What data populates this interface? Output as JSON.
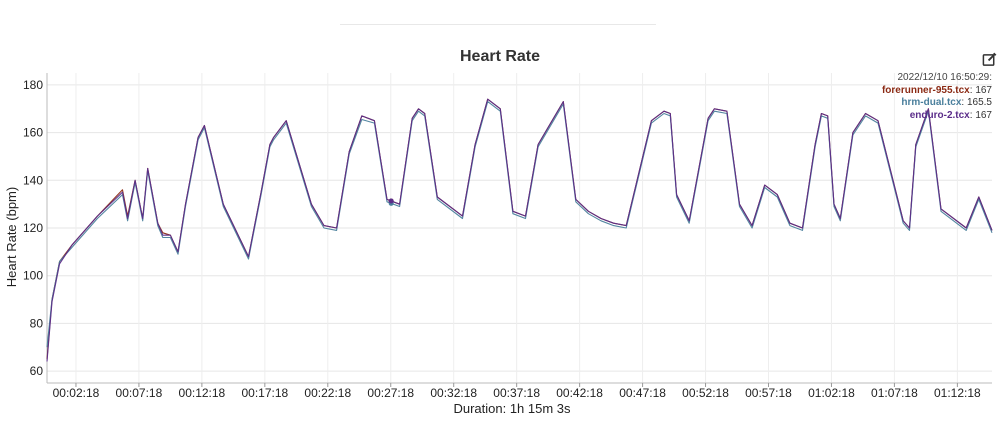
{
  "chart_data": {
    "type": "line",
    "title": "Heart Rate",
    "ylabel": "Heart Rate (bpm)",
    "xlabel": "Duration: 1h 15m 3s",
    "ylim": [
      55,
      185
    ],
    "xlim": [
      0,
      4503
    ],
    "yticks": [
      60,
      80,
      100,
      120,
      140,
      160,
      180
    ],
    "xticks": [
      {
        "t": 138,
        "label": "00:02:18"
      },
      {
        "t": 438,
        "label": "00:07:18"
      },
      {
        "t": 738,
        "label": "00:12:18"
      },
      {
        "t": 1038,
        "label": "00:17:18"
      },
      {
        "t": 1338,
        "label": "00:22:18"
      },
      {
        "t": 1638,
        "label": "00:27:18"
      },
      {
        "t": 1938,
        "label": "00:32:18"
      },
      {
        "t": 2238,
        "label": "00:37:18"
      },
      {
        "t": 2538,
        "label": "00:42:18"
      },
      {
        "t": 2838,
        "label": "00:47:18"
      },
      {
        "t": 3138,
        "label": "00:52:18"
      },
      {
        "t": 3438,
        "label": "00:57:18"
      },
      {
        "t": 3738,
        "label": "01:02:18"
      },
      {
        "t": 4038,
        "label": "01:07:18"
      },
      {
        "t": 4338,
        "label": "01:12:18"
      }
    ],
    "grid": true,
    "legend_position": "top-right",
    "tooltip": {
      "time": "2022/12/10 16:50:29:",
      "t": 1640
    },
    "x": [
      0,
      24,
      60,
      120,
      240,
      360,
      384,
      420,
      456,
      480,
      528,
      552,
      588,
      624,
      660,
      720,
      750,
      840,
      960,
      1020,
      1062,
      1080,
      1140,
      1260,
      1320,
      1380,
      1440,
      1500,
      1560,
      1620,
      1680,
      1740,
      1770,
      1800,
      1860,
      1980,
      2040,
      2100,
      2160,
      2220,
      2280,
      2340,
      2460,
      2520,
      2580,
      2640,
      2700,
      2760,
      2880,
      2940,
      2970,
      3000,
      3060,
      3150,
      3180,
      3240,
      3300,
      3360,
      3420,
      3480,
      3540,
      3600,
      3660,
      3690,
      3720,
      3750,
      3780,
      3840,
      3900,
      3960,
      4080,
      4110,
      4140,
      4200,
      4260,
      4380,
      4440,
      4503
    ],
    "series": [
      {
        "name": "forerunner-955.tcx",
        "readout": "167",
        "color": "#8b2a14",
        "values": [
          65,
          90,
          106,
          113,
          125,
          136,
          125,
          140,
          124,
          145,
          122,
          118,
          117,
          110,
          130,
          158,
          163,
          130,
          108,
          135,
          155,
          158,
          165,
          130,
          121,
          120,
          152,
          167,
          165,
          132,
          130,
          166,
          170,
          168,
          133,
          125,
          155,
          174,
          170,
          127,
          125,
          155,
          173,
          132,
          127,
          124,
          122,
          121,
          165,
          169,
          168,
          134,
          123,
          166,
          170,
          169,
          130,
          121,
          138,
          134,
          122,
          120,
          155,
          168,
          167,
          130,
          124,
          160,
          168,
          165,
          123,
          120,
          155,
          170,
          128,
          120,
          133,
          119
        ]
      },
      {
        "name": "hrm-dual.tcx",
        "readout": "165.5",
        "color": "#4a7f9c",
        "values": [
          70,
          90,
          106,
          112,
          124,
          134,
          123,
          139,
          123,
          144,
          121,
          116,
          116,
          109,
          129,
          157,
          162,
          129,
          107,
          134,
          154,
          157,
          164,
          129,
          120,
          119,
          151,
          165.5,
          164,
          131,
          129,
          165,
          169,
          167,
          132,
          124,
          154,
          173,
          169,
          126,
          124,
          154,
          172,
          131,
          126,
          123,
          121,
          120,
          164,
          168,
          167,
          133,
          122,
          165,
          169,
          168,
          129,
          120,
          137,
          133,
          121,
          119,
          154,
          167,
          166,
          129,
          123,
          159,
          167,
          164,
          122,
          119,
          154,
          169,
          127,
          119,
          132,
          118
        ]
      },
      {
        "name": "enduro-2.tcx",
        "readout": "167",
        "color": "#5b2d8a",
        "values": [
          64,
          89,
          105,
          113,
          125,
          135,
          124,
          140,
          124,
          145,
          122,
          117,
          117,
          110,
          130,
          158,
          163,
          130,
          108,
          135,
          155,
          158,
          165,
          130,
          121,
          120,
          152,
          167,
          165,
          132,
          130,
          166,
          170,
          168,
          133,
          125,
          155,
          174,
          170,
          127,
          125,
          155,
          173,
          132,
          127,
          124,
          122,
          121,
          165,
          169,
          168,
          134,
          123,
          166,
          170,
          169,
          130,
          121,
          138,
          134,
          122,
          120,
          155,
          168,
          167,
          130,
          124,
          160,
          168,
          165,
          123,
          120,
          155,
          170,
          128,
          120,
          133,
          119
        ]
      }
    ]
  }
}
